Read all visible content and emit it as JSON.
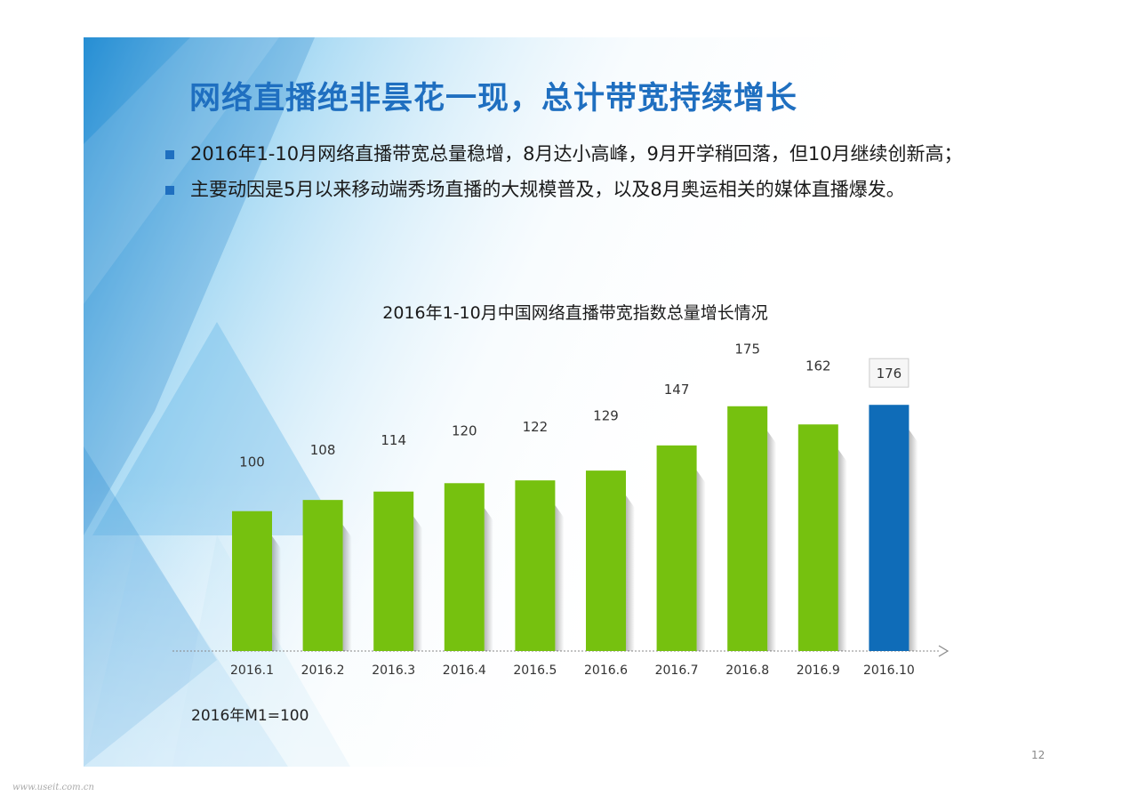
{
  "title": "网络直播绝非昙花一现，总计带宽持续增长",
  "bullets": [
    "2016年1-10月网络直播带宽总量稳增，8月达小高峰，9月开学稍回落，但10月继续创新高；",
    "主要动因是5月以来移动端秀场直播的大规模普及，以及8月奥运相关的媒体直播爆发。"
  ],
  "note": "2016年M1=100",
  "page_number": "12",
  "watermark": "www.useit.com.cn",
  "colors": {
    "title": "#1f6fc0",
    "bar": "#76c10f",
    "highlight_bar": "#0f6cb8"
  },
  "chart_data": {
    "type": "bar",
    "title": "2016年1-10月中国网络直播带宽指数总量增长情况",
    "categories": [
      "2016.1",
      "2016.2",
      "2016.3",
      "2016.4",
      "2016.5",
      "2016.6",
      "2016.7",
      "2016.8",
      "2016.9",
      "2016.10"
    ],
    "values": [
      100,
      108,
      114,
      120,
      122,
      129,
      147,
      175,
      162,
      176
    ],
    "highlight_index": 9,
    "xlabel": "",
    "ylabel": "",
    "grid": false,
    "legend": "none"
  }
}
